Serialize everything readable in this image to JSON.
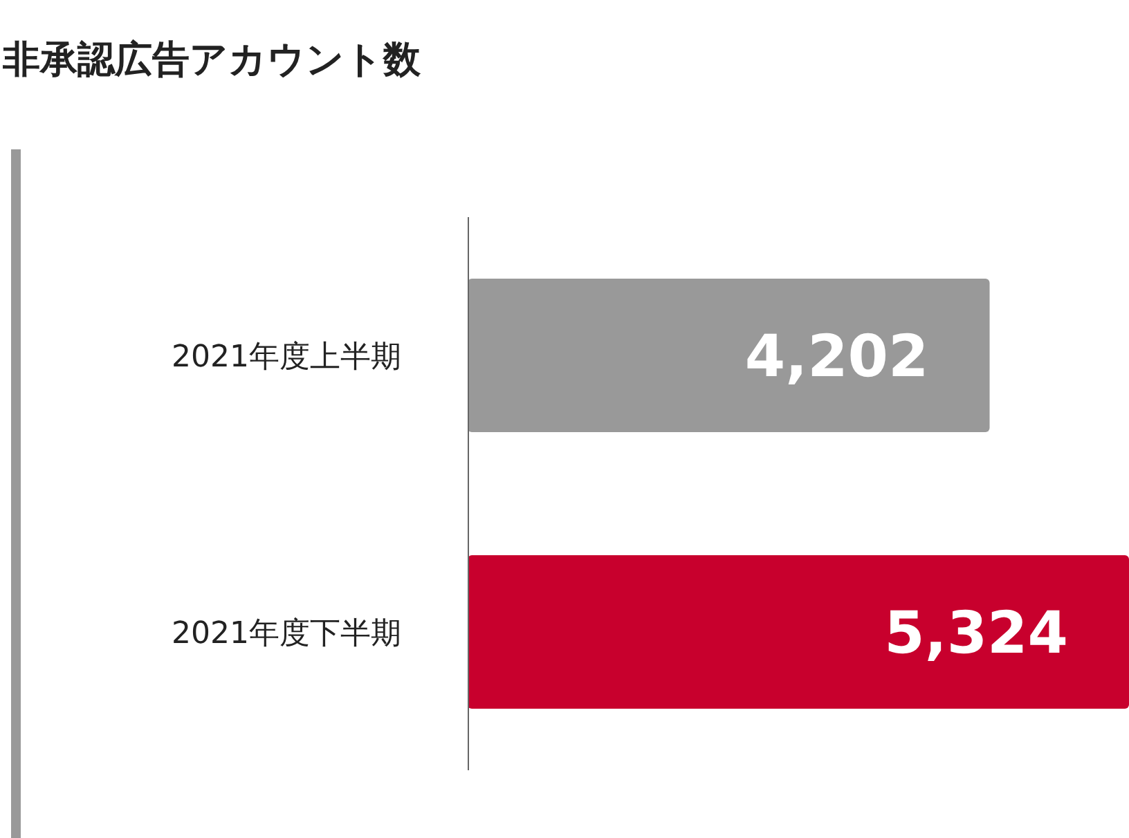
{
  "chart_data": {
    "type": "bar",
    "orientation": "horizontal",
    "title": "非承認広告アカウント数",
    "categories": [
      "2021年度上半期",
      "2021年度下半期"
    ],
    "values": [
      4202,
      5324
    ],
    "colors": [
      "#999999",
      "#c8002d"
    ],
    "value_labels": [
      "4,202",
      "5,324"
    ]
  }
}
